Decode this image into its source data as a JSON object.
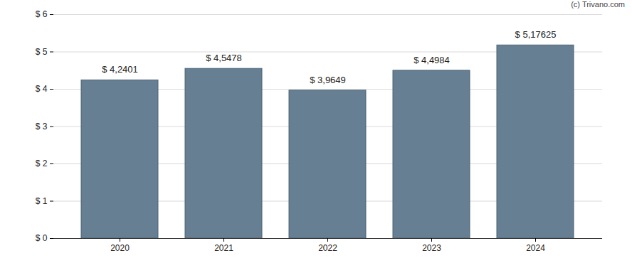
{
  "chart_data": {
    "type": "bar",
    "annotation": "(c) Trivano.com",
    "categories": [
      "2020",
      "2021",
      "2022",
      "2023",
      "2024"
    ],
    "values": [
      4.2401,
      4.5478,
      3.9649,
      4.4984,
      5.17625
    ],
    "value_labels": [
      "$ 4,2401",
      "$ 4,5478",
      "$ 3,9649",
      "$ 4,4984",
      "$ 5,17625"
    ],
    "data_labels": true,
    "color": "#667f93",
    "ylim": [
      0,
      6
    ],
    "yticks": [
      {
        "value": 0,
        "label": "$ 0"
      },
      {
        "value": 1,
        "label": "$ 1"
      },
      {
        "value": 2,
        "label": "$ 2"
      },
      {
        "value": 3,
        "label": "$ 3"
      },
      {
        "value": 4,
        "label": "$ 4"
      },
      {
        "value": 5,
        "label": "$ 5"
      },
      {
        "value": 6,
        "label": "$ 6"
      }
    ],
    "grid": true
  }
}
